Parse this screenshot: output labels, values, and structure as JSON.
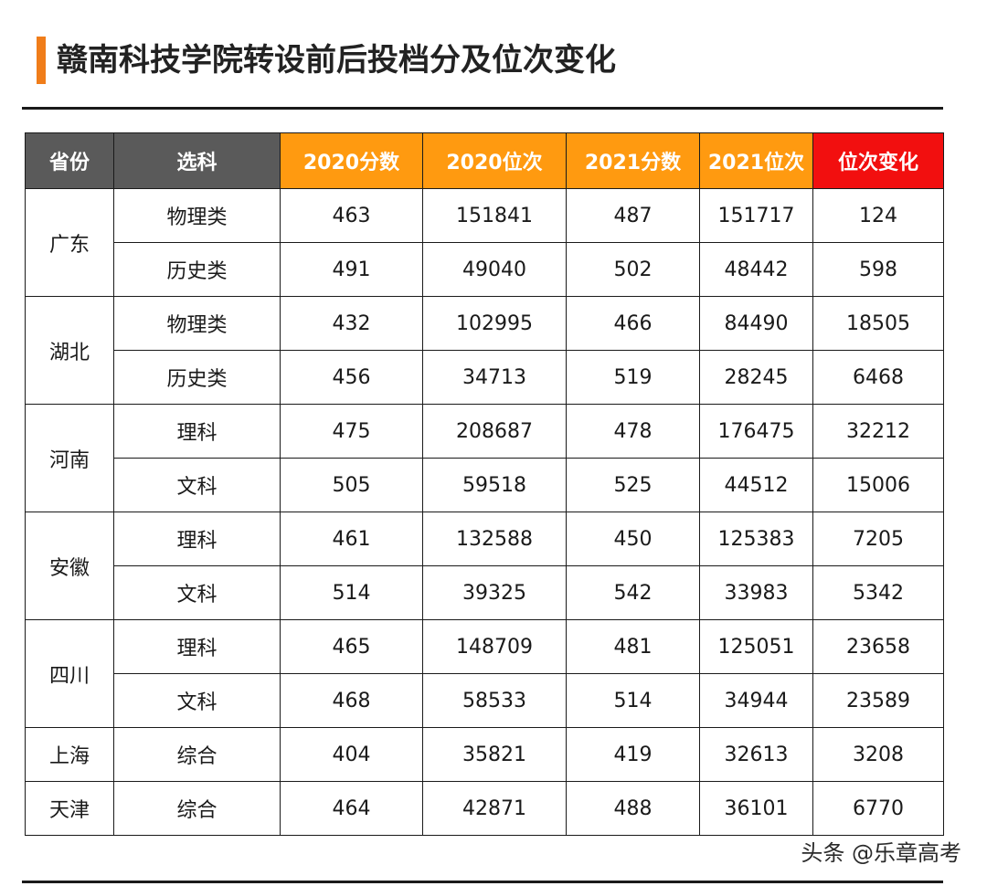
{
  "title": "赣南科技学院转设前后投档分及位次变化",
  "colors": {
    "accent": "#f07d1a",
    "header_gray": "#5a5a5a",
    "header_orange": "#ff9a10",
    "header_red": "#f20f0f"
  },
  "headers": [
    "省份",
    "选科",
    "2020分数",
    "2020位次",
    "2021分数",
    "2021位次",
    "位次变化"
  ],
  "groups": [
    {
      "province": "广东",
      "rows": [
        {
          "subject": "物理类",
          "score_2020": "463",
          "rank_2020": "151841",
          "score_2021": "487",
          "rank_2021": "151717",
          "rank_change": "124"
        },
        {
          "subject": "历史类",
          "score_2020": "491",
          "rank_2020": "49040",
          "score_2021": "502",
          "rank_2021": "48442",
          "rank_change": "598"
        }
      ]
    },
    {
      "province": "湖北",
      "rows": [
        {
          "subject": "物理类",
          "score_2020": "432",
          "rank_2020": "102995",
          "score_2021": "466",
          "rank_2021": "84490",
          "rank_change": "18505"
        },
        {
          "subject": "历史类",
          "score_2020": "456",
          "rank_2020": "34713",
          "score_2021": "519",
          "rank_2021": "28245",
          "rank_change": "6468"
        }
      ]
    },
    {
      "province": "河南",
      "rows": [
        {
          "subject": "理科",
          "score_2020": "475",
          "rank_2020": "208687",
          "score_2021": "478",
          "rank_2021": "176475",
          "rank_change": "32212"
        },
        {
          "subject": "文科",
          "score_2020": "505",
          "rank_2020": "59518",
          "score_2021": "525",
          "rank_2021": "44512",
          "rank_change": "15006"
        }
      ]
    },
    {
      "province": "安徽",
      "rows": [
        {
          "subject": "理科",
          "score_2020": "461",
          "rank_2020": "132588",
          "score_2021": "450",
          "rank_2021": "125383",
          "rank_change": "7205"
        },
        {
          "subject": "文科",
          "score_2020": "514",
          "rank_2020": "39325",
          "score_2021": "542",
          "rank_2021": "33983",
          "rank_change": "5342"
        }
      ]
    },
    {
      "province": "四川",
      "rows": [
        {
          "subject": "理科",
          "score_2020": "465",
          "rank_2020": "148709",
          "score_2021": "481",
          "rank_2021": "125051",
          "rank_change": "23658"
        },
        {
          "subject": "文科",
          "score_2020": "468",
          "rank_2020": "58533",
          "score_2021": "514",
          "rank_2021": "34944",
          "rank_change": "23589"
        }
      ]
    },
    {
      "province": "上海",
      "rows": [
        {
          "subject": "综合",
          "score_2020": "404",
          "rank_2020": "35821",
          "score_2021": "419",
          "rank_2021": "32613",
          "rank_change": "3208"
        }
      ]
    },
    {
      "province": "天津",
      "rows": [
        {
          "subject": "综合",
          "score_2020": "464",
          "rank_2020": "42871",
          "score_2021": "488",
          "rank_2021": "36101",
          "rank_change": "6770"
        }
      ]
    }
  ],
  "watermark": "头条 @乐章高考"
}
